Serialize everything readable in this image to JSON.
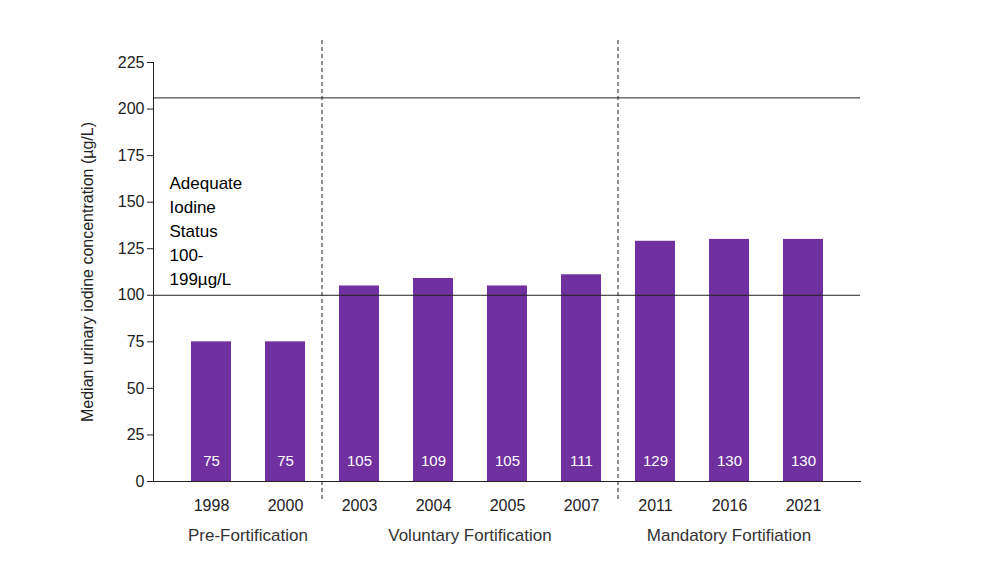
{
  "chart_data": {
    "type": "bar",
    "y_label": "Median urinary iodine concentration (µg/L)",
    "categories": [
      "1998",
      "2000",
      "2003",
      "2004",
      "2005",
      "2007",
      "2011",
      "2016",
      "2021"
    ],
    "values": [
      75,
      75,
      105,
      109,
      105,
      111,
      129,
      130,
      130
    ],
    "color": "#7030a0",
    "data_labels": true,
    "ylim": [
      0,
      225
    ],
    "yticks": [
      0,
      25,
      50,
      75,
      100,
      125,
      150,
      175,
      200,
      225
    ],
    "reference_lines": [
      100,
      206
    ],
    "annotation": "Adequate\nIodine\nStatus\n100-\n199µg/L",
    "phases": [
      {
        "label": "Pre-Fortification",
        "categories": [
          "1998",
          "2000"
        ]
      },
      {
        "label": "Voluntary Fortification",
        "categories": [
          "2003",
          "2004",
          "2005",
          "2007"
        ]
      },
      {
        "label": "Mandatory Fortifiation",
        "categories": [
          "2011",
          "2016",
          "2021"
        ]
      }
    ]
  }
}
